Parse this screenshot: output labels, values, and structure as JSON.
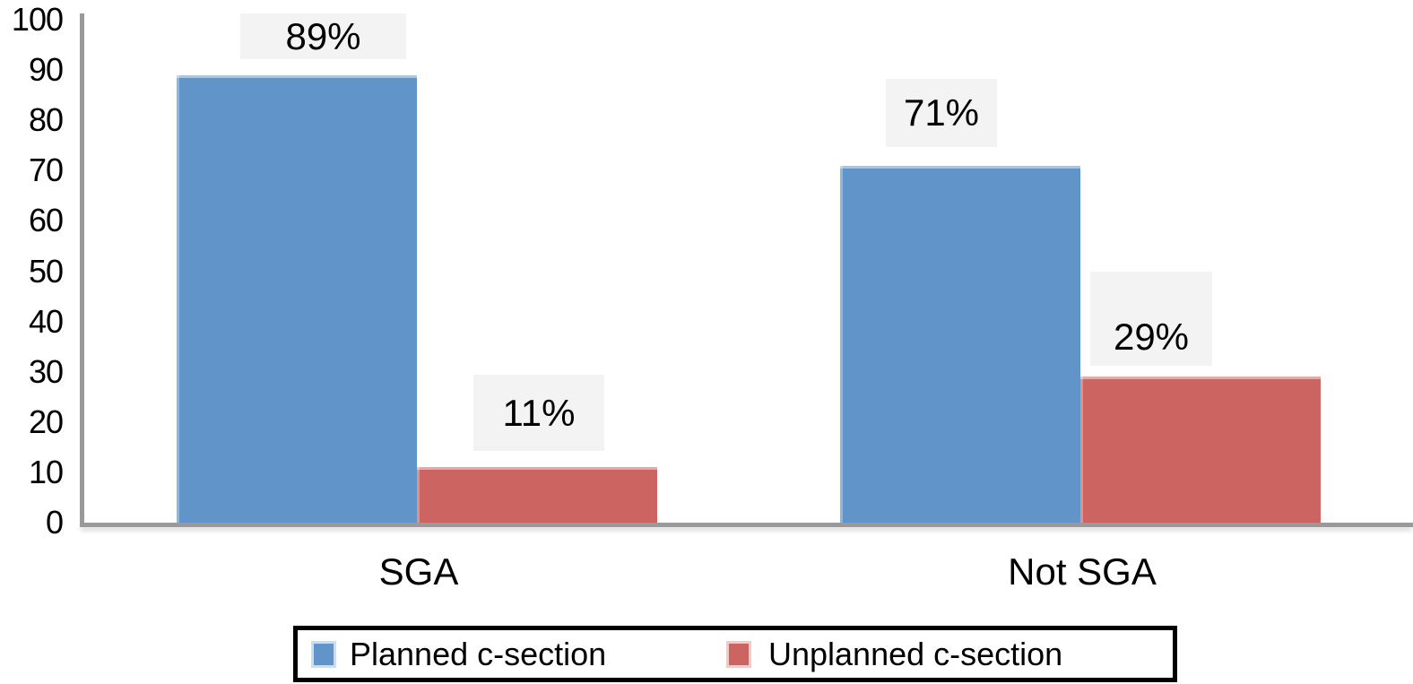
{
  "chart_data": {
    "type": "bar",
    "title": "",
    "xlabel": "",
    "ylabel": "",
    "categories": [
      "SGA",
      "Not SGA"
    ],
    "series": [
      {
        "name": "Planned c-section",
        "color": "#6195C9",
        "values": [
          89,
          71
        ],
        "data_labels": [
          "89%",
          "71%"
        ]
      },
      {
        "name": "Unplanned c-section",
        "color": "#CC6561",
        "values": [
          11,
          29
        ],
        "data_labels": [
          "11%",
          "29%"
        ]
      }
    ],
    "ylim": [
      0,
      100
    ],
    "ytick_labels": [
      "0",
      "10",
      "20",
      "30",
      "40",
      "50",
      "60",
      "70",
      "80",
      "90",
      "100"
    ],
    "yticks": [
      0,
      10,
      20,
      30,
      40,
      50,
      60,
      70,
      80,
      90,
      100
    ],
    "grid": false,
    "legend_position": "bottom",
    "colors": {
      "axis": "#9A9A9A",
      "value_label_box_bg": "#F4F3F4",
      "text": "#000000",
      "legend_border": "#000000"
    }
  }
}
